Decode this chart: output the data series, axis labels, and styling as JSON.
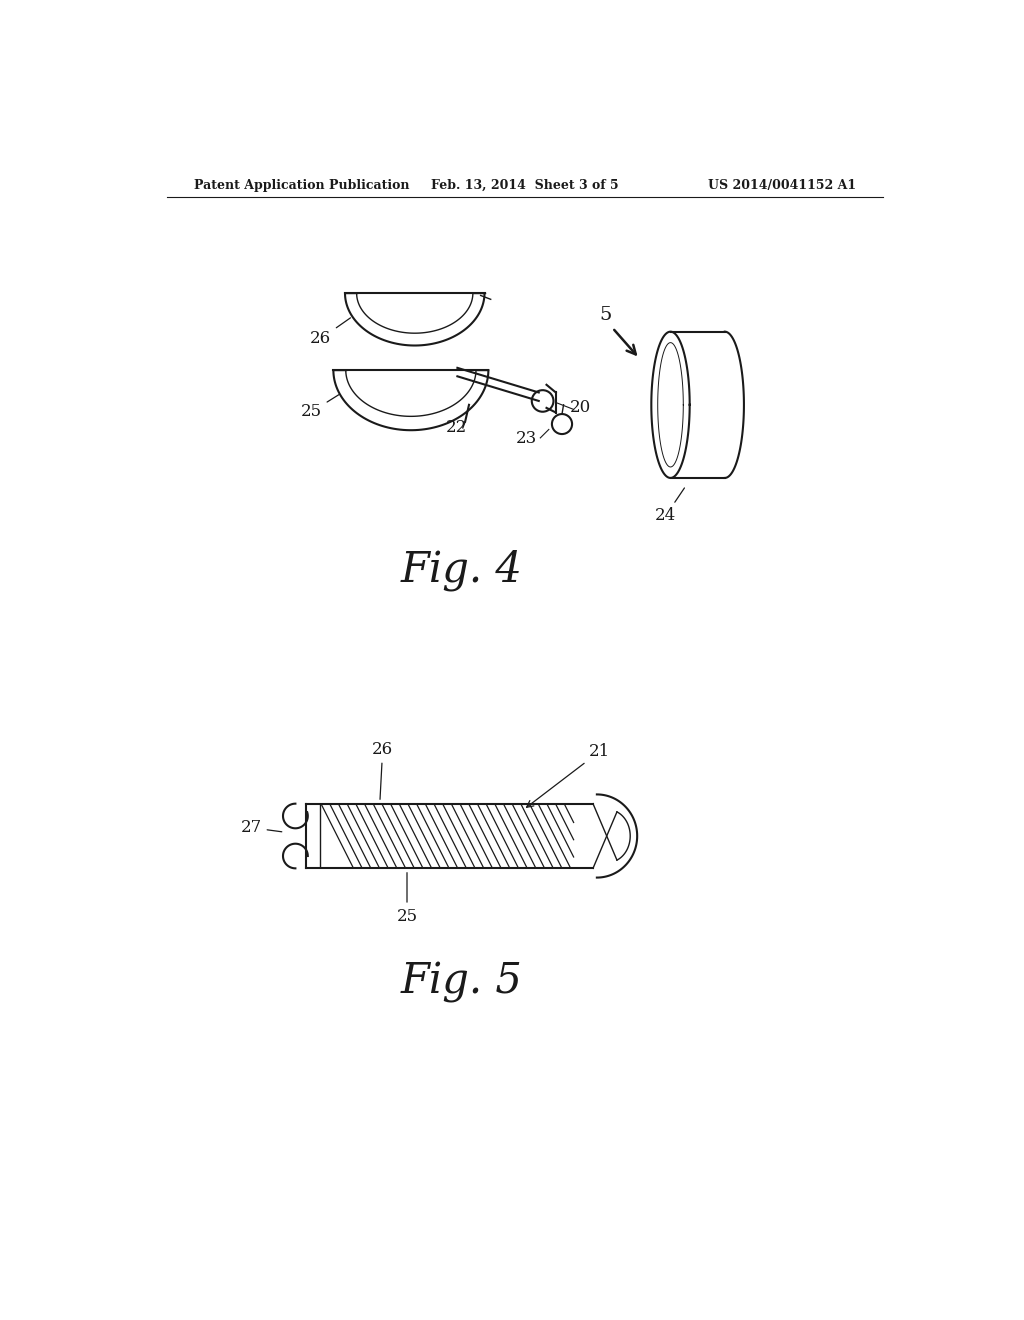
{
  "background_color": "#ffffff",
  "header_left": "Patent Application Publication",
  "header_center": "Feb. 13, 2014  Sheet 3 of 5",
  "header_right": "US 2014/0041152 A1",
  "fig4_label": "Fig. 4",
  "fig5_label": "Fig. 5",
  "color_main": "#1a1a1a"
}
